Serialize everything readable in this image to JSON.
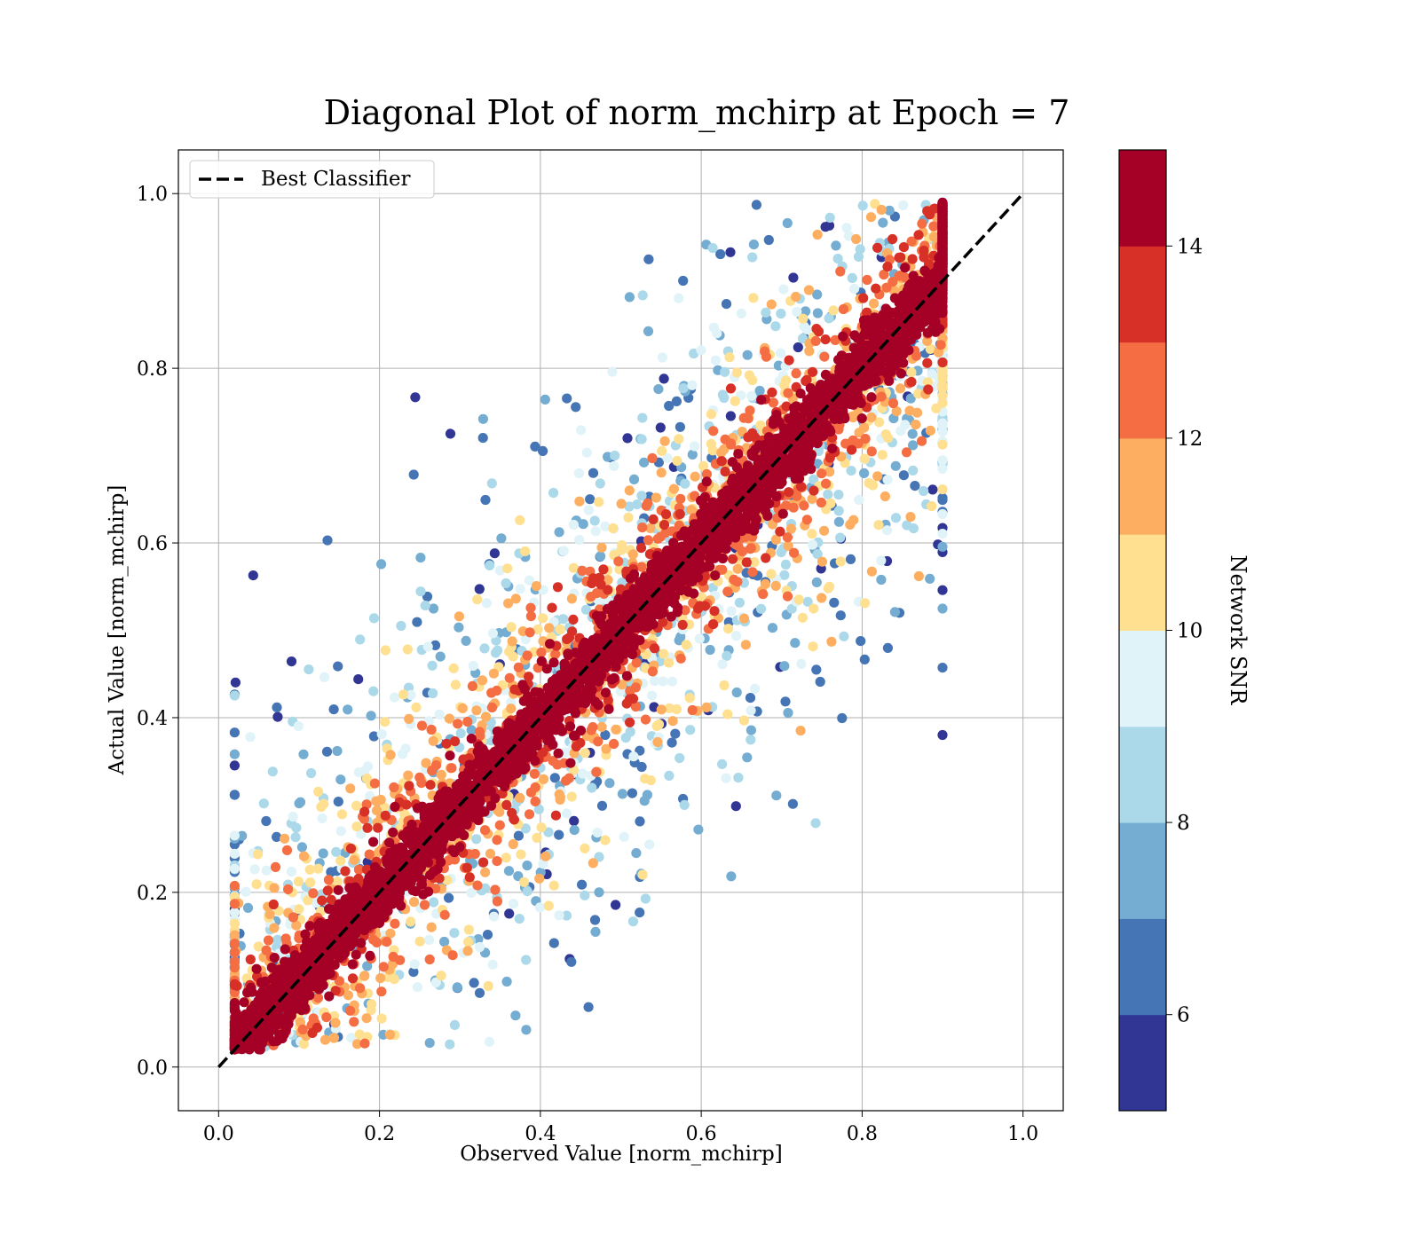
{
  "chart_data": {
    "type": "scatter",
    "title": "Diagonal Plot of norm_mchirp at Epoch = 7",
    "xlabel": "Observed Value [norm_mchirp]",
    "ylabel": "Actual Value [norm_mchirp]",
    "xlim": [
      -0.05,
      1.05
    ],
    "ylim": [
      -0.05,
      1.05
    ],
    "x_ticks": [
      "0.0",
      "0.2",
      "0.4",
      "0.6",
      "0.8",
      "1.0"
    ],
    "y_ticks": [
      "0.0",
      "0.2",
      "0.4",
      "0.6",
      "0.8",
      "1.0"
    ],
    "grid": true,
    "legend": {
      "placement": "top-left",
      "entries": [
        "Best Classifier"
      ]
    },
    "reference_line": {
      "name": "Best Classifier",
      "style": "dashed",
      "color": "#000000",
      "x": [
        0,
        1
      ],
      "y": [
        0,
        1
      ]
    },
    "colorbar": {
      "label": "Network SNR",
      "range": [
        5,
        15
      ],
      "tick_values": [
        6,
        8,
        10,
        12,
        14
      ],
      "tick_labels": [
        "6",
        "8",
        "10",
        "12",
        "14"
      ],
      "colors": [
        "#313695",
        "#4575b4",
        "#74add1",
        "#abd9e9",
        "#e0f3f8",
        "#fee090",
        "#fdae61",
        "#f46d43",
        "#d73027",
        "#a50026"
      ]
    },
    "scatter_summary": {
      "x_range": [
        0.02,
        0.9
      ],
      "y_range": [
        0.0,
        1.0
      ],
      "pattern": "Points cluster along the diagonal; high-SNR points (dark red) lie close to the line while low-SNR points (blue) spread widely on both sides."
    }
  }
}
